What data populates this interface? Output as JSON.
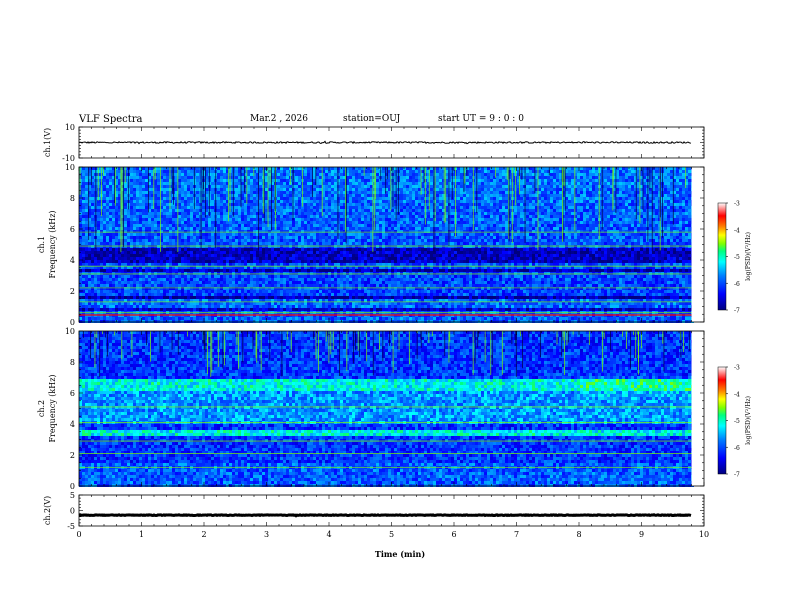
{
  "header": {
    "title": "VLF Spectra",
    "date": "Mar.2 , 2026",
    "station": "station=OUJ",
    "start_time": "start UT = 9 : 0 : 0"
  },
  "colors": {
    "background": "#ffffff",
    "axis": "#000000",
    "colormap": [
      "#00007f",
      "#0000ff",
      "#007fff",
      "#00ffff",
      "#00ff7f",
      "#7fff00",
      "#ffff00",
      "#ff7f00",
      "#ff0000",
      "#ffffff"
    ]
  },
  "chart_data": [
    {
      "type": "line",
      "panel": "waveform-ch1",
      "ylabel": "ch.1(V)",
      "ylim": [
        -10,
        10
      ],
      "y_ticks": [
        "10",
        "-10"
      ],
      "xlim": [
        0,
        10
      ],
      "level": 0,
      "noise_amplitude": 0.5
    },
    {
      "type": "heatmap",
      "panel": "spectrogram-ch1",
      "ylabel": "ch.1 Frequency (kHz)",
      "ylim": [
        0,
        10
      ],
      "y_ticks": [
        "0",
        "2",
        "4",
        "6",
        "8",
        "10"
      ],
      "xlim": [
        0,
        10
      ],
      "data_end_min": 9.8,
      "dark_bands_khz": [
        [
          4.0,
          4.8
        ],
        [
          3.3,
          3.5
        ],
        [
          1.6,
          1.8
        ],
        [
          0.8,
          1.0
        ]
      ],
      "bright_lines_khz": [
        0.6,
        1.3,
        2.2,
        3.1,
        3.6,
        4.9,
        5.8
      ],
      "red_line_khz": 0.45,
      "colorbar": {
        "label": "log(PSD)(V²/Hz)",
        "ticks": [
          "-3",
          "-4",
          "-5",
          "-6",
          "-7"
        ],
        "range": [
          -7,
          -3
        ]
      }
    },
    {
      "type": "heatmap",
      "panel": "spectrogram-ch2",
      "ylabel": "ch.2 Frequency (kHz)",
      "ylim": [
        0,
        10
      ],
      "y_ticks": [
        "0",
        "2",
        "4",
        "6",
        "8",
        "10"
      ],
      "xlim": [
        0,
        10
      ],
      "data_end_min": 9.8,
      "bright_bands_khz": [
        [
          6.3,
          7.0
        ],
        [
          3.3,
          3.7
        ]
      ],
      "bright_lines_khz": [
        1.2,
        2.1,
        2.9,
        4.1,
        5.1
      ],
      "colorbar": {
        "label": "log(PSD)(V²/Hz)",
        "ticks": [
          "-3",
          "-4",
          "-5",
          "-6",
          "-7"
        ],
        "range": [
          -7,
          -3
        ]
      }
    },
    {
      "type": "line",
      "panel": "waveform-ch2",
      "ylabel": "ch.2(V)",
      "ylim": [
        -5,
        5
      ],
      "y_ticks": [
        "5",
        "0",
        "-5"
      ],
      "xlim": [
        0,
        10
      ],
      "level": -1.5,
      "noise_amplitude": 0.1
    }
  ],
  "x_axis": {
    "label": "Time (min)",
    "ticks": [
      "0",
      "1",
      "2",
      "3",
      "4",
      "5",
      "6",
      "7",
      "8",
      "9",
      "10"
    ]
  }
}
